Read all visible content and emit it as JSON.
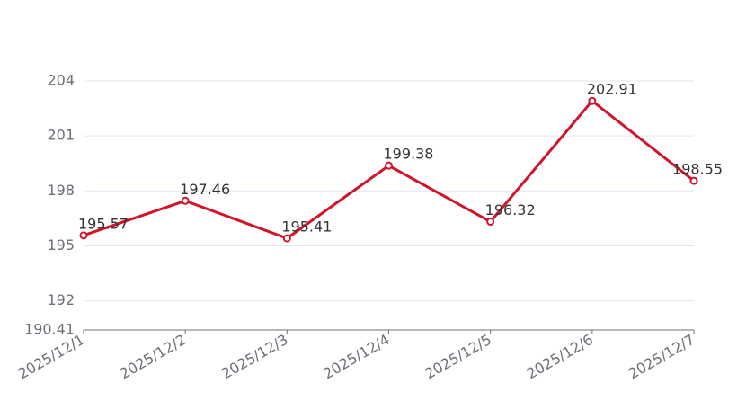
{
  "chart_data": {
    "type": "line",
    "categories": [
      "2025/12/1",
      "2025/12/2",
      "2025/12/3",
      "2025/12/4",
      "2025/12/5",
      "2025/12/6",
      "2025/12/7"
    ],
    "values": [
      195.57,
      197.46,
      195.41,
      199.38,
      196.32,
      202.91,
      198.55
    ],
    "color": "#d0142c",
    "ylim": [
      190.41,
      204
    ],
    "yticks": [
      190.41,
      192,
      195,
      198,
      201,
      204
    ],
    "grid": true
  }
}
